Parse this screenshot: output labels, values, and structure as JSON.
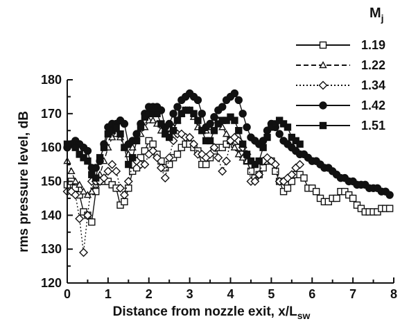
{
  "chart_data": {
    "type": "line",
    "xlabel": "Distance from nozzle exit, x/L",
    "xlabel_sub": "sw",
    "ylabel": "rms pressure level, dB",
    "xlim": [
      0,
      8
    ],
    "ylim": [
      120,
      180
    ],
    "x_ticks": [
      "0",
      "1",
      "2",
      "3",
      "4",
      "5",
      "6",
      "7",
      "8"
    ],
    "y_ticks": [
      "120",
      "130",
      "140",
      "150",
      "160",
      "170",
      "180"
    ],
    "legend_title": "M",
    "legend_title_sub": "j",
    "legend_position": "top-right",
    "grid": false,
    "series": [
      {
        "name": "1.19",
        "marker": "square-open",
        "line": "solid",
        "points": [
          [
            0.0,
            149
          ],
          [
            0.1,
            150
          ],
          [
            0.2,
            148
          ],
          [
            0.3,
            146
          ],
          [
            0.4,
            141
          ],
          [
            0.5,
            140
          ],
          [
            0.6,
            138
          ],
          [
            0.7,
            147
          ],
          [
            0.8,
            150
          ],
          [
            0.9,
            150
          ],
          [
            1.0,
            150
          ],
          [
            1.1,
            149
          ],
          [
            1.2,
            148
          ],
          [
            1.3,
            143
          ],
          [
            1.4,
            144
          ],
          [
            1.5,
            148
          ],
          [
            1.6,
            153
          ],
          [
            1.7,
            154
          ],
          [
            1.8,
            157
          ],
          [
            1.9,
            159
          ],
          [
            2.0,
            162
          ],
          [
            2.1,
            161
          ],
          [
            2.2,
            158
          ],
          [
            2.3,
            156
          ],
          [
            2.4,
            154
          ],
          [
            2.5,
            155
          ],
          [
            2.6,
            157
          ],
          [
            2.7,
            158
          ],
          [
            2.8,
            160
          ],
          [
            2.9,
            161
          ],
          [
            3.0,
            161
          ],
          [
            3.1,
            160
          ],
          [
            3.2,
            159
          ],
          [
            3.3,
            155
          ],
          [
            3.4,
            155
          ],
          [
            3.5,
            157
          ],
          [
            3.6,
            159
          ],
          [
            3.7,
            160
          ],
          [
            3.8,
            160
          ],
          [
            3.9,
            161
          ],
          [
            4.0,
            162
          ],
          [
            4.1,
            161
          ],
          [
            4.2,
            160
          ],
          [
            4.3,
            158
          ],
          [
            4.4,
            156
          ],
          [
            4.5,
            153
          ],
          [
            4.6,
            151
          ],
          [
            4.7,
            152
          ],
          [
            4.8,
            154
          ],
          [
            4.9,
            156
          ],
          [
            5.0,
            156
          ],
          [
            5.1,
            153
          ],
          [
            5.2,
            150
          ],
          [
            5.3,
            147
          ],
          [
            5.4,
            148
          ],
          [
            5.5,
            150
          ],
          [
            5.6,
            152
          ],
          [
            5.7,
            152
          ],
          [
            5.8,
            151
          ],
          [
            5.9,
            148
          ],
          [
            6.0,
            148
          ],
          [
            6.1,
            147
          ],
          [
            6.2,
            145
          ],
          [
            6.3,
            144
          ],
          [
            6.4,
            144
          ],
          [
            6.5,
            145
          ],
          [
            6.6,
            145
          ],
          [
            6.7,
            147
          ],
          [
            6.8,
            147
          ],
          [
            6.9,
            146
          ],
          [
            7.0,
            145
          ],
          [
            7.1,
            143
          ],
          [
            7.2,
            142
          ],
          [
            7.3,
            141
          ],
          [
            7.4,
            141
          ],
          [
            7.5,
            141
          ],
          [
            7.6,
            141
          ],
          [
            7.7,
            142
          ],
          [
            7.8,
            142
          ],
          [
            7.9,
            142
          ]
        ]
      },
      {
        "name": "1.22",
        "marker": "triangle-open",
        "line": "dashed",
        "points": [
          [
            0.0,
            156
          ],
          [
            0.1,
            153
          ],
          [
            0.2,
            150
          ],
          [
            0.3,
            149
          ],
          [
            0.4,
            147
          ],
          [
            0.5,
            146
          ],
          [
            0.6,
            147
          ],
          [
            0.7,
            149
          ],
          [
            0.8,
            152
          ],
          [
            0.9,
            156
          ],
          [
            1.0,
            160
          ],
          [
            1.1,
            163
          ],
          [
            1.2,
            164
          ],
          [
            1.3,
            163
          ],
          [
            1.4,
            160
          ],
          [
            1.5,
            158
          ],
          [
            1.6,
            160
          ],
          [
            1.7,
            163
          ],
          [
            1.8,
            164
          ],
          [
            1.9,
            166
          ],
          [
            2.0,
            168
          ],
          [
            2.1,
            168
          ],
          [
            2.2,
            167
          ],
          [
            2.3,
            165
          ],
          [
            2.4,
            164
          ],
          [
            2.5,
            164
          ],
          [
            2.6,
            166
          ],
          [
            2.7,
            168
          ],
          [
            2.8,
            170
          ],
          [
            2.9,
            171
          ],
          [
            3.0,
            171
          ],
          [
            3.1,
            169
          ],
          [
            3.2,
            166
          ],
          [
            3.3,
            165
          ],
          [
            3.4,
            165
          ],
          [
            3.5,
            166
          ],
          [
            3.6,
            168
          ],
          [
            3.7,
            168
          ],
          [
            3.8,
            166
          ],
          [
            3.9,
            164
          ],
          [
            4.0,
            162
          ],
          [
            4.1,
            160
          ],
          [
            4.2,
            158
          ],
          [
            4.3,
            157
          ],
          [
            4.4,
            156
          ]
        ]
      },
      {
        "name": "1.34",
        "marker": "diamond-open",
        "line": "dotted",
        "points": [
          [
            0.0,
            147
          ],
          [
            0.1,
            147
          ],
          [
            0.2,
            146
          ],
          [
            0.3,
            139
          ],
          [
            0.4,
            129
          ],
          [
            0.5,
            140
          ],
          [
            0.6,
            150
          ],
          [
            0.7,
            150
          ],
          [
            0.8,
            150
          ],
          [
            0.9,
            151
          ],
          [
            1.0,
            153
          ],
          [
            1.1,
            155
          ],
          [
            1.2,
            153
          ],
          [
            1.3,
            148
          ],
          [
            1.4,
            146
          ],
          [
            1.5,
            150
          ],
          [
            1.6,
            155
          ],
          [
            1.7,
            156
          ],
          [
            1.8,
            155
          ],
          [
            1.9,
            155
          ],
          [
            2.0,
            158
          ],
          [
            2.1,
            159
          ],
          [
            2.2,
            157
          ],
          [
            2.3,
            154
          ],
          [
            2.4,
            151
          ],
          [
            2.5,
            157
          ],
          [
            2.6,
            162
          ],
          [
            2.7,
            164
          ],
          [
            2.8,
            164
          ],
          [
            2.9,
            163
          ],
          [
            3.0,
            163
          ],
          [
            3.1,
            161
          ],
          [
            3.2,
            158
          ],
          [
            3.3,
            158
          ],
          [
            3.4,
            157
          ],
          [
            3.5,
            158
          ],
          [
            3.6,
            160
          ],
          [
            3.7,
            157
          ],
          [
            3.8,
            153
          ],
          [
            3.9,
            156
          ],
          [
            4.0,
            162
          ],
          [
            4.1,
            163
          ],
          [
            4.2,
            162
          ],
          [
            4.3,
            160
          ],
          [
            4.4,
            158
          ],
          [
            4.5,
            150
          ],
          [
            4.6,
            150
          ],
          [
            4.7,
            152
          ],
          [
            4.8,
            156
          ],
          [
            4.9,
            157
          ],
          [
            5.0,
            156
          ],
          [
            5.1,
            155
          ],
          [
            5.2,
            150
          ],
          [
            5.3,
            150
          ],
          [
            5.4,
            151
          ],
          [
            5.5,
            152
          ],
          [
            5.6,
            154
          ],
          [
            5.7,
            155
          ]
        ]
      },
      {
        "name": "1.42",
        "marker": "circle-filled",
        "line": "solid",
        "points": [
          [
            0.0,
            160
          ],
          [
            0.1,
            161
          ],
          [
            0.2,
            162
          ],
          [
            0.3,
            161
          ],
          [
            0.4,
            160
          ],
          [
            0.5,
            159
          ],
          [
            0.6,
            154
          ],
          [
            0.7,
            154
          ],
          [
            0.8,
            156
          ],
          [
            0.9,
            161
          ],
          [
            1.0,
            166
          ],
          [
            1.1,
            167
          ],
          [
            1.2,
            167
          ],
          [
            1.3,
            168
          ],
          [
            1.4,
            167
          ],
          [
            1.5,
            161
          ],
          [
            1.6,
            162
          ],
          [
            1.7,
            164
          ],
          [
            1.8,
            167
          ],
          [
            1.9,
            170
          ],
          [
            2.0,
            172
          ],
          [
            2.1,
            172
          ],
          [
            2.2,
            172
          ],
          [
            2.3,
            171
          ],
          [
            2.4,
            166
          ],
          [
            2.5,
            167
          ],
          [
            2.6,
            170
          ],
          [
            2.7,
            172
          ],
          [
            2.8,
            174
          ],
          [
            2.9,
            175
          ],
          [
            3.0,
            176
          ],
          [
            3.1,
            175
          ],
          [
            3.2,
            174
          ],
          [
            3.3,
            170
          ],
          [
            3.4,
            166
          ],
          [
            3.5,
            167
          ],
          [
            3.6,
            169
          ],
          [
            3.7,
            171
          ],
          [
            3.8,
            172
          ],
          [
            3.9,
            174
          ],
          [
            4.0,
            175
          ],
          [
            4.1,
            176
          ],
          [
            4.2,
            174
          ],
          [
            4.3,
            170
          ],
          [
            4.4,
            166
          ],
          [
            4.5,
            163
          ],
          [
            4.6,
            162
          ],
          [
            4.7,
            161
          ],
          [
            4.8,
            162
          ],
          [
            4.9,
            165
          ],
          [
            5.0,
            167
          ],
          [
            5.1,
            166
          ],
          [
            5.2,
            164
          ],
          [
            5.3,
            162
          ],
          [
            5.4,
            161
          ],
          [
            5.5,
            160
          ],
          [
            5.6,
            159
          ],
          [
            5.7,
            158
          ],
          [
            5.8,
            158
          ],
          [
            5.9,
            157
          ],
          [
            6.0,
            156
          ],
          [
            6.1,
            156
          ],
          [
            6.2,
            155
          ],
          [
            6.3,
            154
          ],
          [
            6.4,
            154
          ],
          [
            6.5,
            153
          ],
          [
            6.6,
            152
          ],
          [
            6.7,
            151
          ],
          [
            6.8,
            151
          ],
          [
            6.9,
            150
          ],
          [
            7.0,
            150
          ],
          [
            7.1,
            149
          ],
          [
            7.2,
            149
          ],
          [
            7.3,
            149
          ],
          [
            7.4,
            148
          ],
          [
            7.5,
            148
          ],
          [
            7.6,
            148
          ],
          [
            7.7,
            147
          ],
          [
            7.8,
            147
          ],
          [
            7.9,
            146
          ]
        ]
      },
      {
        "name": "1.51",
        "marker": "square-filled",
        "line": "solid",
        "points": [
          [
            0.0,
            161
          ],
          [
            0.1,
            161
          ],
          [
            0.2,
            160
          ],
          [
            0.3,
            158
          ],
          [
            0.4,
            157
          ],
          [
            0.5,
            156
          ],
          [
            0.6,
            152
          ],
          [
            0.7,
            151
          ],
          [
            0.8,
            157
          ],
          [
            0.9,
            160
          ],
          [
            1.0,
            164
          ],
          [
            1.1,
            165
          ],
          [
            1.2,
            166
          ],
          [
            1.3,
            164
          ],
          [
            1.4,
            160
          ],
          [
            1.5,
            155
          ],
          [
            1.6,
            157
          ],
          [
            1.7,
            162
          ],
          [
            1.8,
            166
          ],
          [
            1.9,
            169
          ],
          [
            2.0,
            170
          ],
          [
            2.1,
            170
          ],
          [
            2.2,
            170
          ],
          [
            2.3,
            167
          ],
          [
            2.4,
            164
          ],
          [
            2.5,
            163
          ],
          [
            2.6,
            165
          ],
          [
            2.7,
            168
          ],
          [
            2.8,
            170
          ],
          [
            2.9,
            171
          ],
          [
            3.0,
            171
          ],
          [
            3.1,
            170
          ],
          [
            3.2,
            168
          ],
          [
            3.3,
            165
          ],
          [
            3.4,
            162
          ],
          [
            3.5,
            162
          ],
          [
            3.6,
            165
          ],
          [
            3.7,
            167
          ],
          [
            3.8,
            168
          ],
          [
            3.9,
            168
          ],
          [
            4.0,
            169
          ],
          [
            4.1,
            168
          ],
          [
            4.2,
            165
          ],
          [
            4.3,
            161
          ],
          [
            4.4,
            158
          ],
          [
            4.5,
            156
          ],
          [
            4.6,
            155
          ],
          [
            4.7,
            156
          ],
          [
            4.8,
            160
          ],
          [
            4.9,
            163
          ],
          [
            5.0,
            166
          ],
          [
            5.1,
            167
          ],
          [
            5.2,
            168
          ],
          [
            5.3,
            167
          ],
          [
            5.4,
            166
          ],
          [
            5.5,
            163
          ],
          [
            5.6,
            162
          ],
          [
            5.7,
            161
          ]
        ]
      }
    ]
  }
}
